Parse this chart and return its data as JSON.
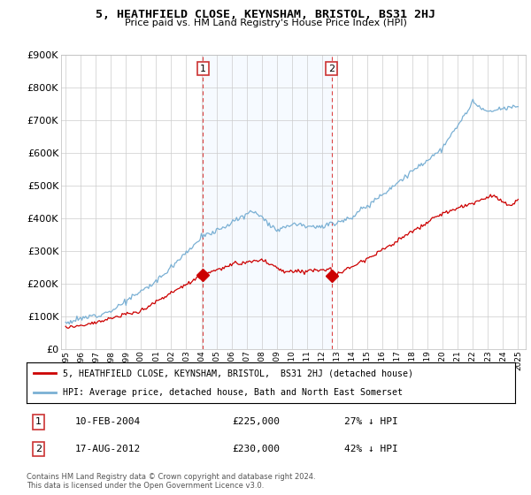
{
  "title": "5, HEATHFIELD CLOSE, KEYNSHAM, BRISTOL, BS31 2HJ",
  "subtitle": "Price paid vs. HM Land Registry's House Price Index (HPI)",
  "red_label": "5, HEATHFIELD CLOSE, KEYNSHAM, BRISTOL,  BS31 2HJ (detached house)",
  "blue_label": "HPI: Average price, detached house, Bath and North East Somerset",
  "annotation1_date": "10-FEB-2004",
  "annotation1_price": "£225,000",
  "annotation1_hpi": "27% ↓ HPI",
  "annotation1_year": 2004.1,
  "annotation2_date": "17-AUG-2012",
  "annotation2_price": "£230,000",
  "annotation2_hpi": "42% ↓ HPI",
  "annotation2_year": 2012.63,
  "footer": "Contains HM Land Registry data © Crown copyright and database right 2024.\nThis data is licensed under the Open Government Licence v3.0.",
  "ylim": [
    0,
    900000
  ],
  "yticks": [
    0,
    100000,
    200000,
    300000,
    400000,
    500000,
    600000,
    700000,
    800000,
    900000
  ],
  "ytick_labels": [
    "£0",
    "£100K",
    "£200K",
    "£300K",
    "£400K",
    "£500K",
    "£600K",
    "£700K",
    "£800K",
    "£900K"
  ],
  "background_color": "#ffffff",
  "plot_bg_color": "#ffffff",
  "grid_color": "#cccccc",
  "red_color": "#cc0000",
  "blue_color": "#7ab0d4",
  "shade_color": "#ddeeff",
  "ann_vline_color": "#dd4444",
  "ann_dot_color": "#cc0000"
}
